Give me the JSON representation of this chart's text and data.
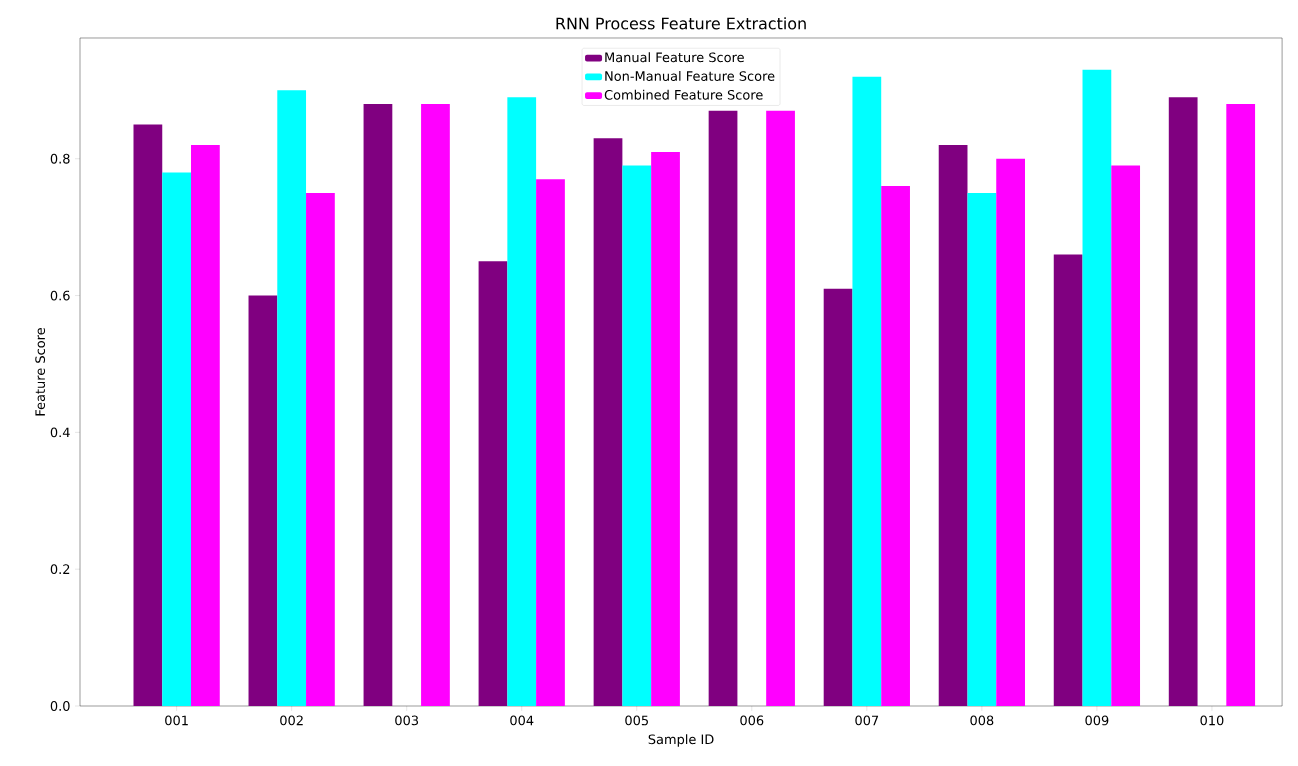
{
  "chart_data": {
    "type": "bar",
    "title": "RNN Process Feature Extraction",
    "xlabel": "Sample ID",
    "ylabel": "Feature Score",
    "categories": [
      "001",
      "002",
      "003",
      "004",
      "005",
      "006",
      "007",
      "008",
      "009",
      "010"
    ],
    "series": [
      {
        "name": "Manual Feature Score",
        "color": "#800080",
        "values": [
          0.85,
          0.6,
          0.88,
          0.65,
          0.83,
          0.87,
          0.61,
          0.82,
          0.66,
          0.89
        ]
      },
      {
        "name": "Non-Manual Feature Score",
        "color": "#00ffff",
        "values": [
          0.78,
          0.9,
          null,
          0.89,
          0.79,
          null,
          0.92,
          0.75,
          0.93,
          null
        ]
      },
      {
        "name": "Combined Feature Score",
        "color": "#ff00ff",
        "values": [
          0.82,
          0.75,
          0.88,
          0.77,
          0.81,
          0.87,
          0.76,
          0.8,
          0.79,
          0.88
        ]
      }
    ],
    "ylim": [
      0,
      0.9765
    ],
    "yticks": [
      {
        "value": 0,
        "label": "0.0"
      },
      0.2,
      0.4,
      0.6,
      0.8
    ],
    "legend": "top",
    "grid": false
  }
}
